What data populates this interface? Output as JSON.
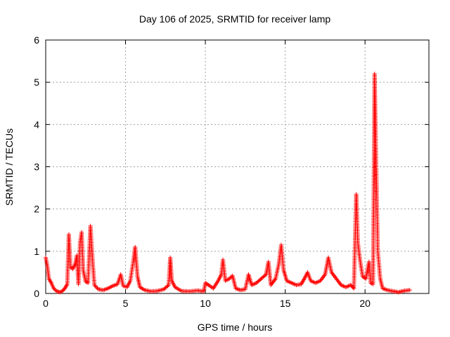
{
  "chart_data": {
    "type": "scatter",
    "title": "Day 106 of 2025, SRMTID for receiver lamp",
    "xlabel": "GPS time / hours",
    "ylabel": "SRMTID / TECUs",
    "xlim": [
      0,
      24
    ],
    "ylim": [
      0,
      6
    ],
    "xticks": [
      0,
      5,
      10,
      15,
      20
    ],
    "xtick_labels": [
      "0",
      "5",
      "10",
      "15",
      "20"
    ],
    "yticks": [
      0,
      1,
      2,
      3,
      4,
      5,
      6
    ],
    "ytick_labels": [
      "0",
      "1",
      "2",
      "3",
      "4",
      "5",
      "6"
    ],
    "grid": true,
    "marker": "plus",
    "color": "#ff0000",
    "series": [
      {
        "name": "SRMTID",
        "keypoints": [
          [
            0.0,
            0.85
          ],
          [
            0.1,
            0.65
          ],
          [
            0.2,
            0.35
          ],
          [
            0.35,
            0.25
          ],
          [
            0.5,
            0.12
          ],
          [
            0.7,
            0.05
          ],
          [
            0.9,
            0.03
          ],
          [
            1.05,
            0.06
          ],
          [
            1.2,
            0.12
          ],
          [
            1.35,
            0.22
          ],
          [
            1.45,
            1.4
          ],
          [
            1.55,
            0.62
          ],
          [
            1.7,
            0.58
          ],
          [
            1.85,
            0.7
          ],
          [
            1.95,
            0.9
          ],
          [
            2.05,
            0.22
          ],
          [
            2.15,
            1.2
          ],
          [
            2.25,
            1.45
          ],
          [
            2.35,
            0.55
          ],
          [
            2.5,
            0.28
          ],
          [
            2.65,
            0.25
          ],
          [
            2.8,
            1.6
          ],
          [
            2.95,
            0.7
          ],
          [
            3.05,
            0.2
          ],
          [
            3.3,
            0.1
          ],
          [
            3.6,
            0.08
          ],
          [
            3.9,
            0.12
          ],
          [
            4.2,
            0.18
          ],
          [
            4.5,
            0.22
          ],
          [
            4.7,
            0.45
          ],
          [
            4.85,
            0.18
          ],
          [
            5.1,
            0.15
          ],
          [
            5.3,
            0.3
          ],
          [
            5.5,
            0.8
          ],
          [
            5.6,
            1.1
          ],
          [
            5.75,
            0.4
          ],
          [
            5.9,
            0.15
          ],
          [
            6.2,
            0.08
          ],
          [
            6.6,
            0.05
          ],
          [
            7.0,
            0.06
          ],
          [
            7.4,
            0.1
          ],
          [
            7.7,
            0.2
          ],
          [
            7.8,
            0.85
          ],
          [
            7.9,
            0.3
          ],
          [
            8.1,
            0.15
          ],
          [
            8.5,
            0.06
          ],
          [
            9.0,
            0.05
          ],
          [
            9.5,
            0.07
          ],
          [
            9.9,
            0.05
          ],
          [
            10.0,
            0.25
          ],
          [
            10.2,
            0.2
          ],
          [
            10.5,
            0.12
          ],
          [
            10.8,
            0.3
          ],
          [
            11.0,
            0.45
          ],
          [
            11.1,
            0.8
          ],
          [
            11.25,
            0.3
          ],
          [
            11.5,
            0.35
          ],
          [
            11.7,
            0.42
          ],
          [
            11.9,
            0.12
          ],
          [
            12.2,
            0.08
          ],
          [
            12.5,
            0.1
          ],
          [
            12.7,
            0.45
          ],
          [
            12.9,
            0.2
          ],
          [
            13.2,
            0.25
          ],
          [
            13.5,
            0.35
          ],
          [
            13.8,
            0.45
          ],
          [
            13.95,
            0.75
          ],
          [
            14.1,
            0.2
          ],
          [
            14.4,
            0.35
          ],
          [
            14.6,
            0.7
          ],
          [
            14.75,
            1.15
          ],
          [
            14.9,
            0.55
          ],
          [
            15.1,
            0.3
          ],
          [
            15.4,
            0.25
          ],
          [
            15.7,
            0.2
          ],
          [
            16.0,
            0.22
          ],
          [
            16.2,
            0.35
          ],
          [
            16.4,
            0.5
          ],
          [
            16.6,
            0.3
          ],
          [
            16.9,
            0.25
          ],
          [
            17.2,
            0.3
          ],
          [
            17.5,
            0.45
          ],
          [
            17.7,
            0.85
          ],
          [
            17.9,
            0.5
          ],
          [
            18.2,
            0.35
          ],
          [
            18.5,
            0.2
          ],
          [
            18.8,
            0.15
          ],
          [
            19.1,
            0.2
          ],
          [
            19.3,
            0.12
          ],
          [
            19.45,
            2.35
          ],
          [
            19.55,
            1.2
          ],
          [
            19.7,
            0.75
          ],
          [
            19.85,
            0.4
          ],
          [
            20.05,
            0.35
          ],
          [
            20.25,
            0.75
          ],
          [
            20.35,
            0.25
          ],
          [
            20.5,
            0.22
          ],
          [
            20.6,
            5.2
          ],
          [
            20.7,
            3.0
          ],
          [
            20.8,
            1.0
          ],
          [
            20.95,
            0.35
          ],
          [
            21.1,
            0.12
          ],
          [
            21.4,
            0.08
          ],
          [
            21.8,
            0.05
          ],
          [
            22.1,
            0.03
          ],
          [
            22.4,
            0.06
          ],
          [
            22.8,
            0.08
          ]
        ]
      }
    ]
  }
}
